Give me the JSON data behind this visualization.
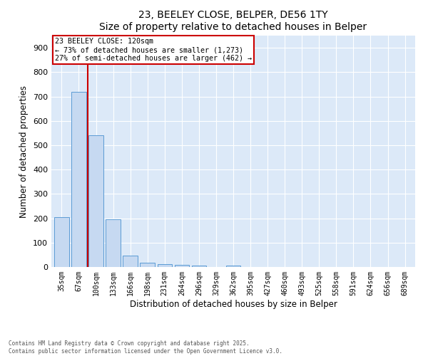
{
  "title1": "23, BEELEY CLOSE, BELPER, DE56 1TY",
  "title2": "Size of property relative to detached houses in Belper",
  "xlabel": "Distribution of detached houses by size in Belper",
  "ylabel": "Number of detached properties",
  "bar_color": "#c6d9f1",
  "bar_edge_color": "#5b9bd5",
  "background_color": "#dce9f8",
  "categories": [
    "35sqm",
    "67sqm",
    "100sqm",
    "133sqm",
    "166sqm",
    "198sqm",
    "231sqm",
    "264sqm",
    "296sqm",
    "329sqm",
    "362sqm",
    "395sqm",
    "427sqm",
    "460sqm",
    "493sqm",
    "525sqm",
    "558sqm",
    "591sqm",
    "624sqm",
    "656sqm",
    "689sqm"
  ],
  "values": [
    205,
    720,
    540,
    195,
    48,
    18,
    13,
    8,
    7,
    0,
    7,
    0,
    0,
    0,
    0,
    0,
    0,
    0,
    0,
    0,
    0
  ],
  "ylim": [
    0,
    950
  ],
  "yticks": [
    0,
    100,
    200,
    300,
    400,
    500,
    600,
    700,
    800,
    900
  ],
  "vline_x": 1.5,
  "annotation_title": "23 BEELEY CLOSE: 120sqm",
  "annotation_line1": "← 73% of detached houses are smaller (1,273)",
  "annotation_line2": "27% of semi-detached houses are larger (462) →",
  "vline_color": "#cc0000",
  "annotation_box_color": "#cc0000",
  "footer1": "Contains HM Land Registry data © Crown copyright and database right 2025.",
  "footer2": "Contains public sector information licensed under the Open Government Licence v3.0."
}
